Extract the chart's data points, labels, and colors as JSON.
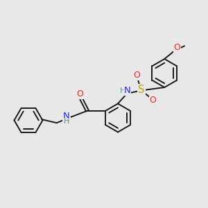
{
  "bg_color": "#e8e8e8",
  "bond_color": "#1a1a1a",
  "bond_width": 1.4,
  "N_color": "#2525ff",
  "O_color": "#ff2020",
  "S_color": "#b8a800",
  "H_color": "#4a9898",
  "figsize": [
    3.0,
    3.0
  ],
  "dpi": 100,
  "xlim": [
    0,
    12
  ],
  "ylim": [
    0,
    12
  ]
}
